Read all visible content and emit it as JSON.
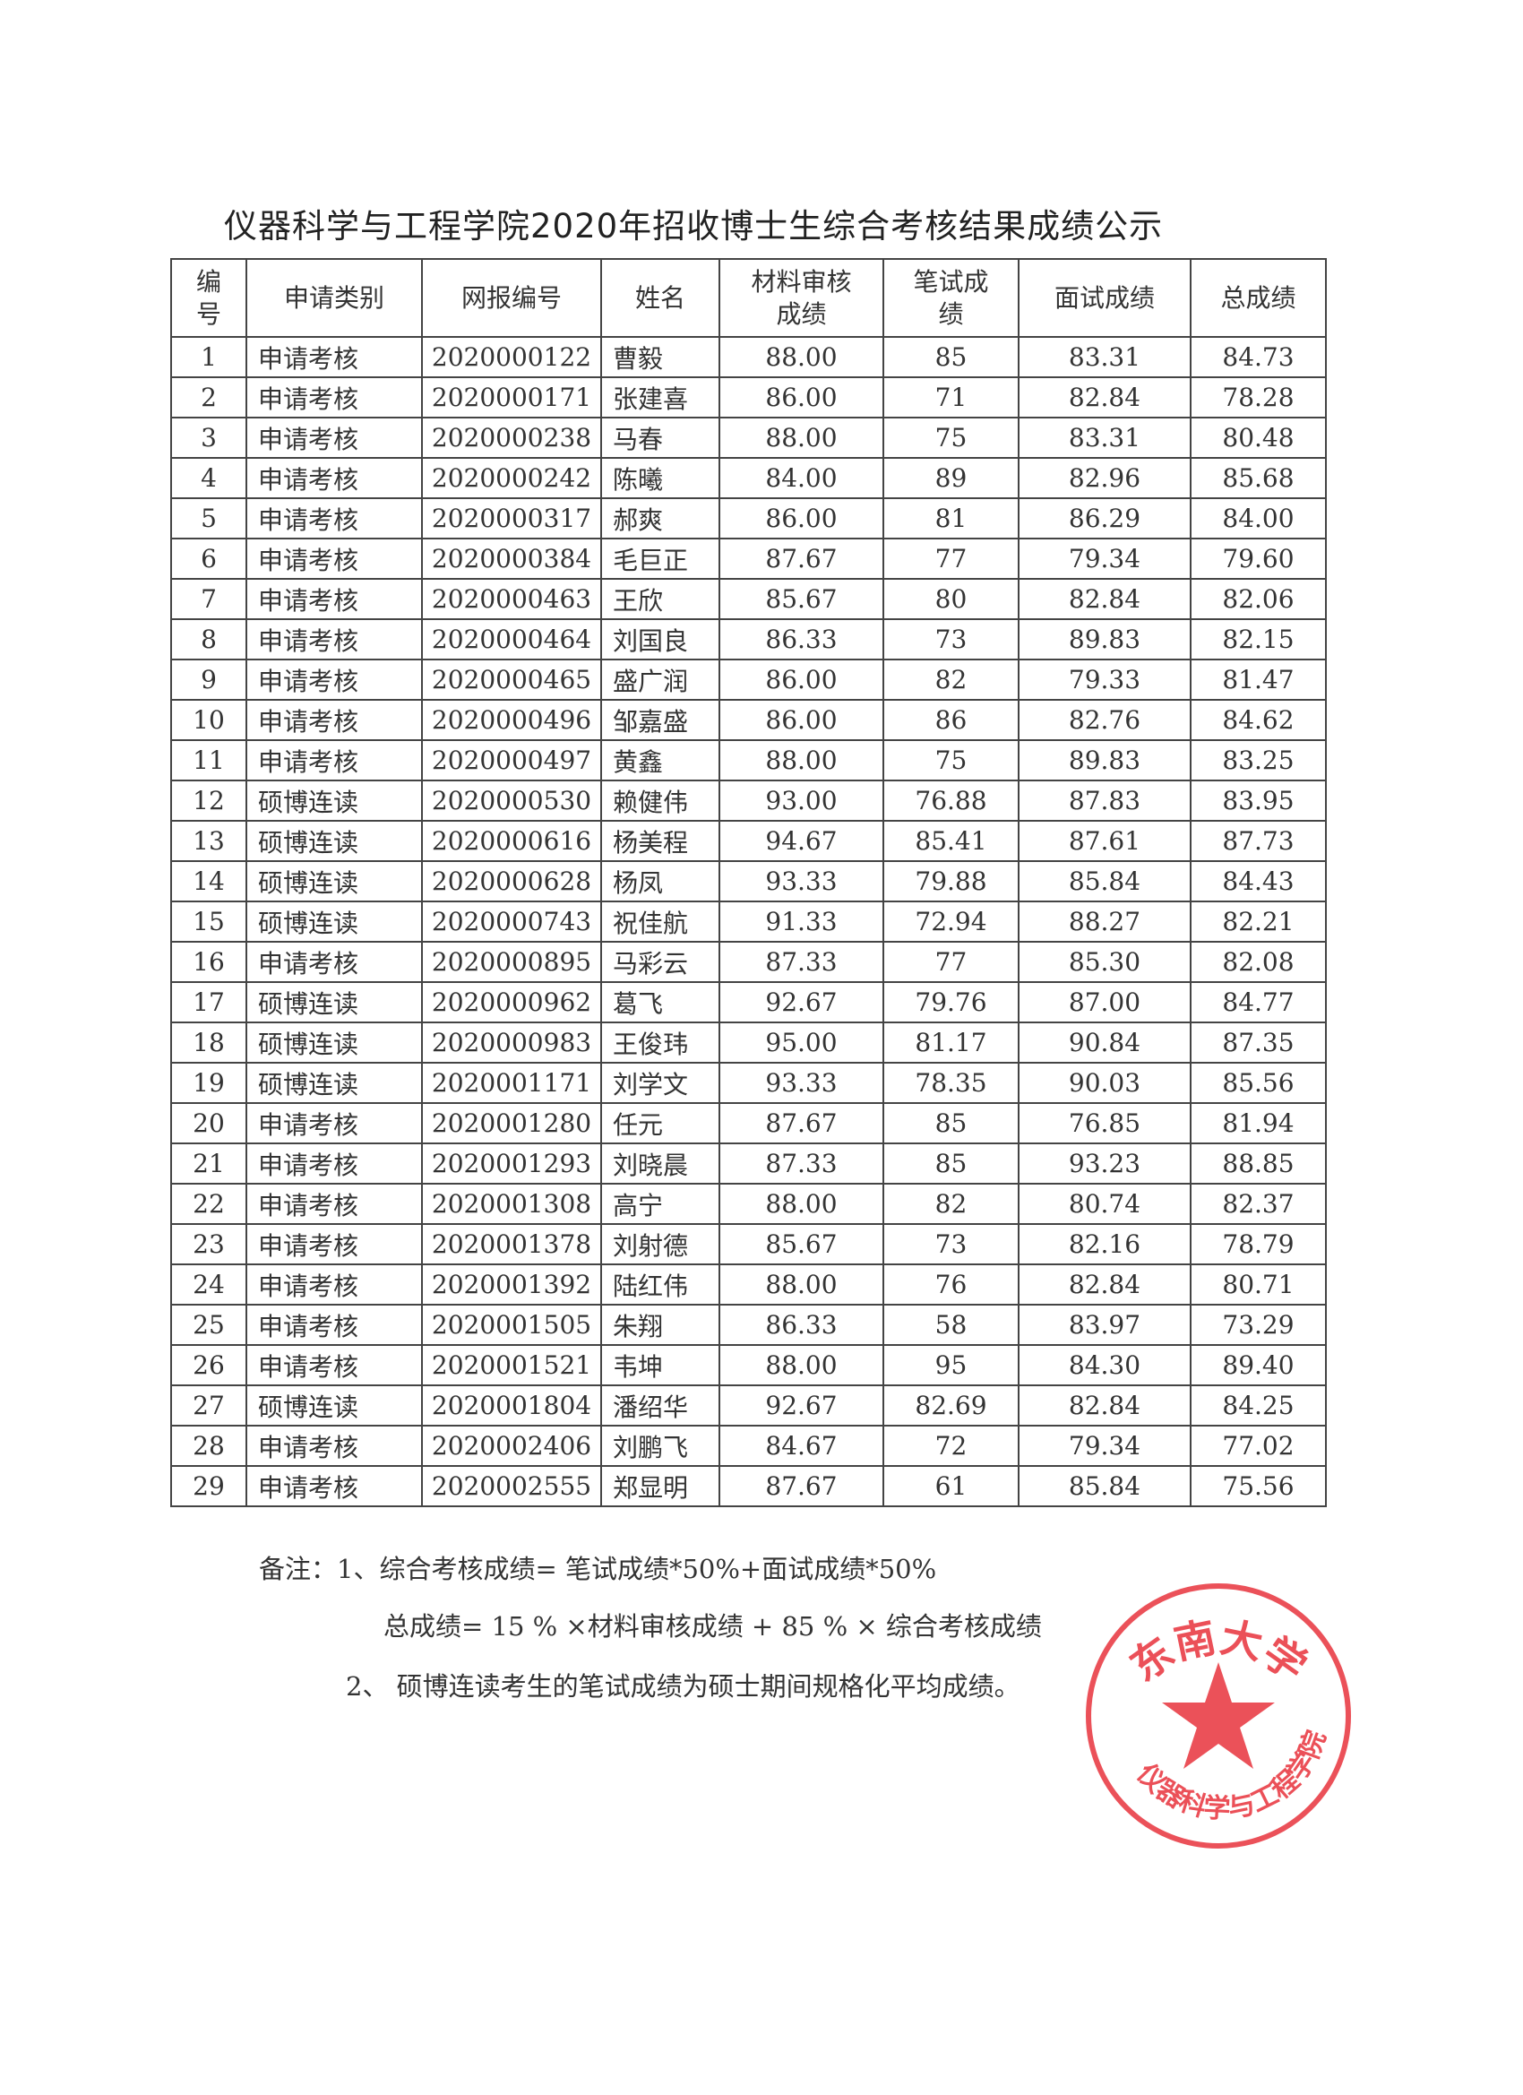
{
  "title": "仪器科学与工程学院2020年招收博士生综合考核结果成绩公示",
  "headers": [
    "编号",
    "申请类别",
    "网报编号",
    "姓名",
    "材料审核成绩",
    "笔试成绩",
    "面试成绩",
    "总成绩"
  ],
  "rows": [
    [
      "1",
      "申请考核",
      "2020000122",
      "曹毅",
      "88.00",
      "85",
      "83.31",
      "84.73"
    ],
    [
      "2",
      "申请考核",
      "2020000171",
      "张建喜",
      "86.00",
      "71",
      "82.84",
      "78.28"
    ],
    [
      "3",
      "申请考核",
      "2020000238",
      "马春",
      "88.00",
      "75",
      "83.31",
      "80.48"
    ],
    [
      "4",
      "申请考核",
      "2020000242",
      "陈曦",
      "84.00",
      "89",
      "82.96",
      "85.68"
    ],
    [
      "5",
      "申请考核",
      "2020000317",
      "郝爽",
      "86.00",
      "81",
      "86.29",
      "84.00"
    ],
    [
      "6",
      "申请考核",
      "2020000384",
      "毛巨正",
      "87.67",
      "77",
      "79.34",
      "79.60"
    ],
    [
      "7",
      "申请考核",
      "2020000463",
      "王欣",
      "85.67",
      "80",
      "82.84",
      "82.06"
    ],
    [
      "8",
      "申请考核",
      "2020000464",
      "刘国良",
      "86.33",
      "73",
      "89.83",
      "82.15"
    ],
    [
      "9",
      "申请考核",
      "2020000465",
      "盛广润",
      "86.00",
      "82",
      "79.33",
      "81.47"
    ],
    [
      "10",
      "申请考核",
      "2020000496",
      "邹嘉盛",
      "86.00",
      "86",
      "82.76",
      "84.62"
    ],
    [
      "11",
      "申请考核",
      "2020000497",
      "黄鑫",
      "88.00",
      "75",
      "89.83",
      "83.25"
    ],
    [
      "12",
      "硕博连读",
      "2020000530",
      "赖健伟",
      "93.00",
      "76.88",
      "87.83",
      "83.95"
    ],
    [
      "13",
      "硕博连读",
      "2020000616",
      "杨美程",
      "94.67",
      "85.41",
      "87.61",
      "87.73"
    ],
    [
      "14",
      "硕博连读",
      "2020000628",
      "杨凤",
      "93.33",
      "79.88",
      "85.84",
      "84.43"
    ],
    [
      "15",
      "硕博连读",
      "2020000743",
      "祝佳航",
      "91.33",
      "72.94",
      "88.27",
      "82.21"
    ],
    [
      "16",
      "申请考核",
      "2020000895",
      "马彩云",
      "87.33",
      "77",
      "85.30",
      "82.08"
    ],
    [
      "17",
      "硕博连读",
      "2020000962",
      "葛飞",
      "92.67",
      "79.76",
      "87.00",
      "84.77"
    ],
    [
      "18",
      "硕博连读",
      "2020000983",
      "王俊玮",
      "95.00",
      "81.17",
      "90.84",
      "87.35"
    ],
    [
      "19",
      "硕博连读",
      "2020001171",
      "刘学文",
      "93.33",
      "78.35",
      "90.03",
      "85.56"
    ],
    [
      "20",
      "申请考核",
      "2020001280",
      "任元",
      "87.67",
      "85",
      "76.85",
      "81.94"
    ],
    [
      "21",
      "申请考核",
      "2020001293",
      "刘晓晨",
      "87.33",
      "85",
      "93.23",
      "88.85"
    ],
    [
      "22",
      "申请考核",
      "2020001308",
      "高宁",
      "88.00",
      "82",
      "80.74",
      "82.37"
    ],
    [
      "23",
      "申请考核",
      "2020001378",
      "刘射德",
      "85.67",
      "73",
      "82.16",
      "78.79"
    ],
    [
      "24",
      "申请考核",
      "2020001392",
      "陆红伟",
      "88.00",
      "76",
      "82.84",
      "80.71"
    ],
    [
      "25",
      "申请考核",
      "2020001505",
      "朱翔",
      "86.33",
      "58",
      "83.97",
      "73.29"
    ],
    [
      "26",
      "申请考核",
      "2020001521",
      "韦坤",
      "88.00",
      "95",
      "84.30",
      "89.40"
    ],
    [
      "27",
      "硕博连读",
      "2020001804",
      "潘绍华",
      "92.67",
      "82.69",
      "82.84",
      "84.25"
    ],
    [
      "28",
      "申请考核",
      "2020002406",
      "刘鹏飞",
      "84.67",
      "72",
      "79.34",
      "77.02"
    ],
    [
      "29",
      "申请考核",
      "2020002555",
      "郑显明",
      "87.67",
      "61",
      "85.84",
      "75.56"
    ]
  ],
  "notes": {
    "line1": "备注：1、综合考核成绩= 笔试成绩*50%+面试成绩*50%",
    "line2": "总成绩=  15 % ×材料审核成绩 + 85 % ×  综合考核成绩",
    "line3": "2、  硕博连读考生的笔试成绩为硕士期间规格化平均成绩。"
  },
  "stamp": {
    "top_text": "东南大学",
    "bottom_text": "仪器科学与工程学院",
    "color": "#e8323c"
  }
}
